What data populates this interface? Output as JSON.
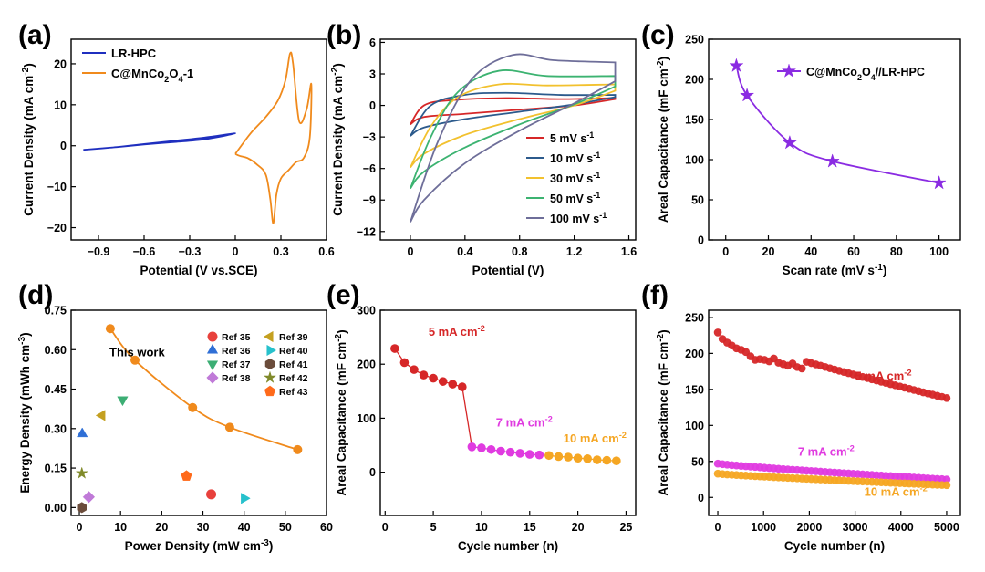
{
  "chart_data": [
    {
      "panel": "(a)",
      "type": "line",
      "xlabel": "Potential (V vs.SCE)",
      "ylabel": "Current Density (mA cm⁻²)",
      "xlim": [
        -1.08,
        0.6
      ],
      "ylim": [
        -23,
        26
      ],
      "xticks": [
        -0.9,
        -0.6,
        -0.3,
        0.0,
        0.3,
        0.6
      ],
      "yticks": [
        -20,
        -10,
        0,
        10,
        20
      ],
      "legend_position": "top-left",
      "series": [
        {
          "name": "LR-HPC",
          "color": "#1f2fbf",
          "x": [
            -1.0,
            -0.8,
            -0.6,
            -0.4,
            -0.2,
            0.0,
            -0.2,
            -0.4,
            -0.6,
            -0.8,
            -1.0
          ],
          "y": [
            -1.0,
            -0.4,
            0.3,
            0.9,
            1.6,
            3.0,
            2.0,
            1.2,
            0.4,
            -0.4,
            -1.0
          ]
        },
        {
          "name": "C@MnCo2O4-1",
          "color": "#f08a1c",
          "x": [
            0.0,
            0.1,
            0.2,
            0.28,
            0.33,
            0.36,
            0.38,
            0.42,
            0.47,
            0.5,
            0.49,
            0.45,
            0.4,
            0.35,
            0.3,
            0.27,
            0.25,
            0.23,
            0.2,
            0.14,
            0.08,
            0.03,
            0.0
          ],
          "y": [
            -2.0,
            3.0,
            7.0,
            11.0,
            16.0,
            22.5,
            20.0,
            6.0,
            9.0,
            15.0,
            2.0,
            -3.0,
            -4.0,
            -6.0,
            -8.0,
            -12.0,
            -19.0,
            -13.0,
            -7.0,
            -4.5,
            -3.0,
            -2.5,
            -2.0
          ]
        }
      ]
    },
    {
      "panel": "(b)",
      "type": "line",
      "xlabel": "Potential (V)",
      "ylabel": "Current Density (mA cm⁻²)",
      "xlim": [
        -0.22,
        1.65
      ],
      "ylim": [
        -12.8,
        6.3
      ],
      "xticks": [
        0.0,
        0.4,
        0.8,
        1.2,
        1.6
      ],
      "yticks": [
        -12,
        -9,
        -6,
        -3,
        0,
        3,
        6
      ],
      "legend_position": "bottom-right",
      "series": [
        {
          "name": "5 mV s⁻¹",
          "color": "#d62728",
          "upper": [
            [
              0.0,
              -1.8
            ],
            [
              0.1,
              0.0
            ],
            [
              0.3,
              0.5
            ],
            [
              0.7,
              0.7
            ],
            [
              1.1,
              0.6
            ],
            [
              1.5,
              0.7
            ]
          ],
          "lower": [
            [
              1.5,
              0.6
            ],
            [
              1.2,
              0.0
            ],
            [
              0.8,
              -0.4
            ],
            [
              0.4,
              -0.8
            ],
            [
              0.1,
              -1.1
            ],
            [
              0.0,
              -1.8
            ]
          ]
        },
        {
          "name": "10 mV s⁻¹",
          "color": "#2c5a8c",
          "upper": [
            [
              0.0,
              -2.9
            ],
            [
              0.15,
              0.0
            ],
            [
              0.4,
              1.0
            ],
            [
              0.7,
              1.2
            ],
            [
              1.1,
              1.0
            ],
            [
              1.5,
              1.0
            ]
          ],
          "lower": [
            [
              1.5,
              0.8
            ],
            [
              1.2,
              0.1
            ],
            [
              0.8,
              -0.6
            ],
            [
              0.4,
              -1.3
            ],
            [
              0.1,
              -2.1
            ],
            [
              0.0,
              -2.9
            ]
          ]
        },
        {
          "name": "30 mV s⁻¹",
          "color": "#f2c12e",
          "upper": [
            [
              0.0,
              -5.9
            ],
            [
              0.15,
              -2.0
            ],
            [
              0.35,
              0.8
            ],
            [
              0.65,
              2.0
            ],
            [
              1.0,
              1.9
            ],
            [
              1.5,
              2.0
            ]
          ],
          "lower": [
            [
              1.5,
              1.4
            ],
            [
              1.2,
              0.0
            ],
            [
              0.8,
              -1.3
            ],
            [
              0.4,
              -2.8
            ],
            [
              0.1,
              -4.6
            ],
            [
              0.0,
              -5.9
            ]
          ]
        },
        {
          "name": "50 mV s⁻¹",
          "color": "#3cb371",
          "upper": [
            [
              0.0,
              -7.9
            ],
            [
              0.15,
              -3.0
            ],
            [
              0.35,
              1.3
            ],
            [
              0.65,
              3.3
            ],
            [
              1.0,
              2.8
            ],
            [
              1.5,
              2.8
            ]
          ],
          "lower": [
            [
              1.5,
              1.8
            ],
            [
              1.2,
              0.1
            ],
            [
              0.8,
              -1.8
            ],
            [
              0.4,
              -4.0
            ],
            [
              0.1,
              -6.3
            ],
            [
              0.0,
              -7.9
            ]
          ]
        },
        {
          "name": "100 mV s⁻¹",
          "color": "#6e6e99",
          "upper": [
            [
              0.0,
              -11.1
            ],
            [
              0.2,
              -3.5
            ],
            [
              0.45,
              2.5
            ],
            [
              0.75,
              4.8
            ],
            [
              1.05,
              4.3
            ],
            [
              1.5,
              4.1
            ]
          ],
          "lower": [
            [
              1.5,
              2.3
            ],
            [
              1.2,
              0.2
            ],
            [
              0.8,
              -2.4
            ],
            [
              0.4,
              -5.5
            ],
            [
              0.1,
              -9.0
            ],
            [
              0.0,
              -11.1
            ]
          ]
        }
      ]
    },
    {
      "panel": "(c)",
      "type": "line",
      "xlabel": "Scan rate (mV s⁻¹)",
      "ylabel": "Areal Capacitance (mF cm⁻²)",
      "xlim": [
        -8,
        110
      ],
      "ylim": [
        0,
        250
      ],
      "xticks": [
        0,
        20,
        40,
        60,
        80,
        100
      ],
      "yticks": [
        0,
        50,
        100,
        150,
        200,
        250
      ],
      "legend_position": "top-right",
      "series": [
        {
          "name": "C@MnCo2O4//LR-HPC",
          "color": "#8a2be2",
          "x": [
            5,
            10,
            30,
            50,
            100
          ],
          "y": [
            217,
            180,
            121,
            98,
            71
          ]
        }
      ]
    },
    {
      "panel": "(d)",
      "type": "scatter",
      "xlabel": "Power Density (mW cm⁻³)",
      "ylabel": "Energy Density (mWh cm⁻³)",
      "xlim": [
        -2,
        60
      ],
      "ylim": [
        -0.03,
        0.75
      ],
      "xticks": [
        0,
        10,
        20,
        30,
        40,
        50,
        60
      ],
      "yticks": [
        "0.00",
        "0.15",
        "0.30",
        "0.45",
        "0.60",
        "0.75"
      ],
      "series": [
        {
          "name": "This work",
          "color": "#f08a1c",
          "x": [
            7.5,
            13.5,
            27.5,
            36.5,
            53
          ],
          "y": [
            0.68,
            0.56,
            0.38,
            0.305,
            0.22
          ]
        }
      ],
      "references": [
        {
          "name": "Ref 35",
          "color": "#e8413c",
          "shape": "circle",
          "x": 32,
          "y": 0.05
        },
        {
          "name": "Ref 36",
          "color": "#2f6fd6",
          "shape": "triangle-up",
          "x": 0.7,
          "y": 0.28
        },
        {
          "name": "Ref 37",
          "color": "#3cae74",
          "shape": "triangle-down",
          "x": 10.5,
          "y": 0.41
        },
        {
          "name": "Ref 38",
          "color": "#c07ad8",
          "shape": "diamond",
          "x": 2.3,
          "y": 0.04
        },
        {
          "name": "Ref 39",
          "color": "#c4a020",
          "shape": "triangle-left",
          "x": 5.5,
          "y": 0.35
        },
        {
          "name": "Ref 40",
          "color": "#27c1cc",
          "shape": "triangle-right",
          "x": 40,
          "y": 0.035
        },
        {
          "name": "Ref 41",
          "color": "#6b4c3b",
          "shape": "hexagon",
          "x": 0.6,
          "y": 0.0
        },
        {
          "name": "Ref 42",
          "color": "#808a2a",
          "shape": "star",
          "x": 0.6,
          "y": 0.13
        },
        {
          "name": "Ref 43",
          "color": "#ff6a1a",
          "shape": "pentagon",
          "x": 26,
          "y": 0.12
        }
      ]
    },
    {
      "panel": "(e)",
      "type": "line",
      "xlabel": "Cycle number (n)",
      "ylabel": "Areal Capacitance (mF cm⁻²)",
      "xlim": [
        -0.5,
        26
      ],
      "ylim": [
        -80,
        300
      ],
      "xticks": [
        0,
        5,
        10,
        15,
        20,
        25
      ],
      "yticks": [
        0,
        100,
        200,
        300
      ],
      "series": [
        {
          "name": "5 mA cm⁻²",
          "color": "#d62728",
          "x": [
            1,
            2,
            3,
            4,
            5,
            6,
            7,
            8
          ],
          "y": [
            229,
            203,
            190,
            180,
            174,
            168,
            163,
            158
          ]
        },
        {
          "name": "7 mA cm⁻²",
          "color": "#e03be0",
          "x": [
            9,
            10,
            11,
            12,
            13,
            14,
            15,
            16
          ],
          "y": [
            47,
            45,
            42,
            39,
            37,
            35,
            33,
            32
          ]
        },
        {
          "name": "10 mA cm⁻²",
          "color": "#f5a623",
          "x": [
            17,
            18,
            19,
            20,
            21,
            22,
            23,
            24
          ],
          "y": [
            31,
            29,
            28,
            26,
            25,
            23,
            22,
            21
          ]
        }
      ]
    },
    {
      "panel": "(f)",
      "type": "scatter",
      "xlabel": "Cycle number (n)",
      "ylabel": "Areal Capacitance (mF cm⁻²)",
      "xlim": [
        -200,
        5300
      ],
      "ylim": [
        -25,
        260
      ],
      "xticks": [
        0,
        1000,
        2000,
        3000,
        4000,
        5000
      ],
      "yticks": [
        0,
        50,
        100,
        150,
        200,
        250
      ],
      "series": [
        {
          "name": "5 mA cm⁻²",
          "color": "#d62728",
          "start": 229,
          "end": 138,
          "points": 50
        },
        {
          "name": "7 mA cm⁻²",
          "color": "#e03be0",
          "start": 47,
          "end": 25,
          "points": 50
        },
        {
          "name": "10 mA cm⁻²",
          "color": "#f5a623",
          "start": 33,
          "end": 17,
          "points": 50
        }
      ]
    }
  ]
}
